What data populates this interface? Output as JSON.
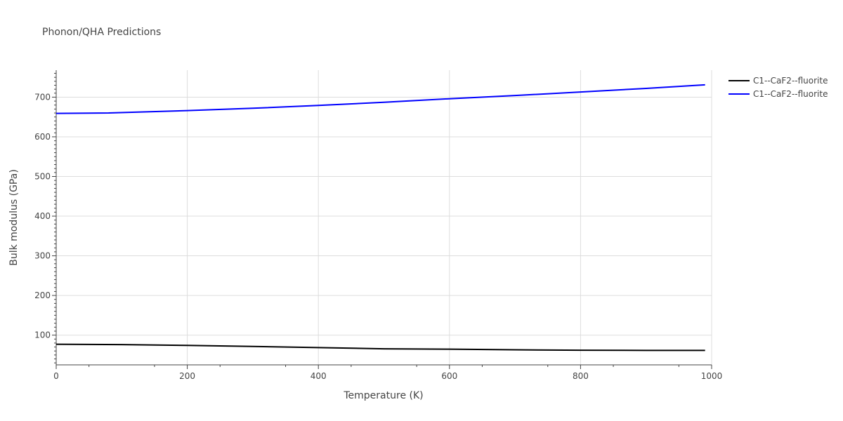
{
  "chart_data": {
    "type": "line",
    "title": "Phonon/QHA Predictions",
    "xlabel": "Temperature (K)",
    "ylabel": "Bulk modulus (GPa)",
    "xlim": [
      0,
      1000
    ],
    "ylim": [
      25,
      768
    ],
    "x_ticks": [
      0,
      200,
      400,
      600,
      800,
      1000
    ],
    "y_ticks": [
      100,
      200,
      300,
      400,
      500,
      600,
      700
    ],
    "grid": true,
    "legend_position": "top-right",
    "series": [
      {
        "name": "C1--CaF2--fluorite",
        "color": "#000000",
        "x": [
          0,
          100,
          200,
          300,
          400,
          500,
          600,
          700,
          800,
          900,
          990
        ],
        "y": [
          77,
          76,
          74,
          71.5,
          68.5,
          65.5,
          64.5,
          63,
          62,
          61.5,
          61.5
        ]
      },
      {
        "name": "C1--CaF2--fluorite",
        "color": "#0000ff",
        "x": [
          0,
          80,
          200,
          300,
          400,
          500,
          600,
          700,
          800,
          900,
          990
        ],
        "y": [
          659,
          660,
          666,
          672,
          679,
          687,
          696,
          704,
          713,
          722,
          731
        ]
      }
    ]
  }
}
